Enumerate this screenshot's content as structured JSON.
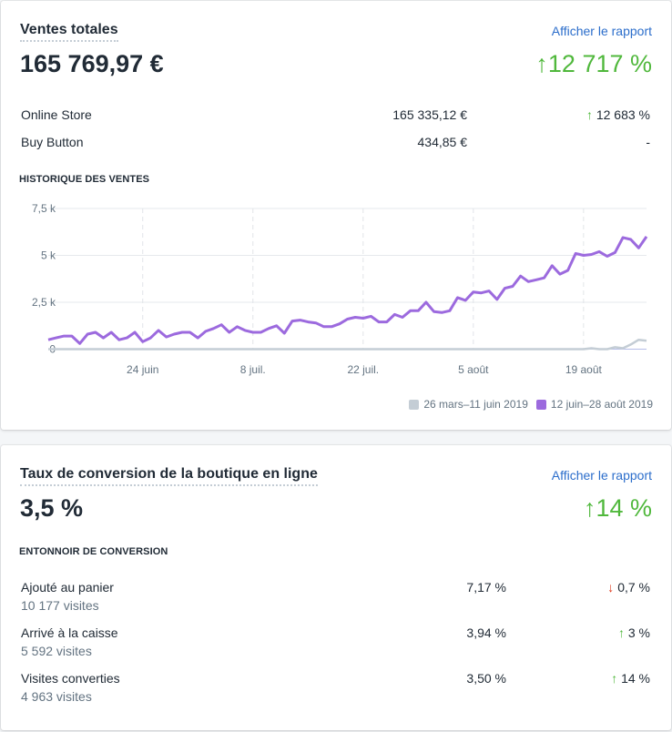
{
  "sales": {
    "title": "Ventes totales",
    "report_link": "Afficher le rapport",
    "total": "165 769,97 €",
    "change": "12 717 %",
    "channels": [
      {
        "name": "Online Store",
        "value": "165 335,12 €",
        "change": "12 683 %",
        "trend": "up"
      },
      {
        "name": "Buy Button",
        "value": "434,85 €",
        "change": "-",
        "trend": "none"
      }
    ],
    "history_label": "HISTORIQUE DES VENTES"
  },
  "chart_data": {
    "type": "line",
    "title": "HISTORIQUE DES VENTES",
    "xlabel": "",
    "ylabel": "",
    "ylim": [
      0,
      7500
    ],
    "yticks": [
      0,
      2500,
      5000,
      7500
    ],
    "ytick_labels": [
      "0",
      "2,5 k",
      "5 k",
      "7,5 k"
    ],
    "xticks": [
      {
        "index": 12,
        "label": "24 juin"
      },
      {
        "index": 26,
        "label": "8 juil."
      },
      {
        "index": 40,
        "label": "22 juil."
      },
      {
        "index": 54,
        "label": "5 août"
      },
      {
        "index": 68,
        "label": "19 août"
      }
    ],
    "grid": true,
    "legend_position": "bottom-right",
    "series": [
      {
        "name": "26 mars–11 juin 2019",
        "color": "#c4cdd5",
        "values": [
          0,
          0,
          0,
          0,
          0,
          0,
          0,
          0,
          0,
          0,
          0,
          0,
          0,
          0,
          0,
          0,
          0,
          0,
          0,
          0,
          0,
          0,
          0,
          0,
          0,
          0,
          0,
          0,
          0,
          0,
          0,
          0,
          0,
          0,
          0,
          0,
          0,
          0,
          0,
          0,
          0,
          0,
          0,
          0,
          0,
          0,
          0,
          0,
          0,
          0,
          0,
          0,
          0,
          0,
          0,
          0,
          0,
          0,
          0,
          0,
          0,
          0,
          0,
          0,
          0,
          0,
          0,
          0,
          0,
          50,
          0,
          0,
          100,
          50,
          250,
          500,
          450
        ]
      },
      {
        "name": "12 juin–28 août 2019",
        "color": "#9c6ade",
        "values": [
          500,
          600,
          700,
          700,
          300,
          800,
          900,
          600,
          900,
          500,
          600,
          900,
          400,
          600,
          1000,
          650,
          800,
          900,
          900,
          600,
          950,
          1100,
          1300,
          900,
          1200,
          1000,
          900,
          900,
          1100,
          1250,
          850,
          1500,
          1550,
          1450,
          1400,
          1200,
          1200,
          1350,
          1600,
          1700,
          1650,
          1750,
          1450,
          1450,
          1850,
          1700,
          2050,
          2050,
          2500,
          2000,
          1950,
          2050,
          2750,
          2600,
          3050,
          3000,
          3100,
          2650,
          3250,
          3350,
          3900,
          3600,
          3700,
          3800,
          4450,
          4000,
          4200,
          5100,
          5000,
          5050,
          5200,
          4950,
          5150,
          5950,
          5850,
          5400,
          6000
        ]
      }
    ]
  },
  "conversion": {
    "title": "Taux de conversion de la boutique en ligne",
    "report_link": "Afficher le rapport",
    "rate": "3,5 %",
    "change": "14 %",
    "funnel_label": "ENTONNOIR DE CONVERSION",
    "steps": [
      {
        "name": "Ajouté au panier",
        "visits": "10 177 visites",
        "rate": "7,17 %",
        "change": "0,7 %",
        "trend": "down"
      },
      {
        "name": "Arrivé à la caisse",
        "visits": "5 592 visites",
        "rate": "3,94 %",
        "change": "3 %",
        "trend": "up"
      },
      {
        "name": "Visites converties",
        "visits": "4 963 visites",
        "rate": "3,50 %",
        "change": "14 %",
        "trend": "up"
      }
    ]
  }
}
